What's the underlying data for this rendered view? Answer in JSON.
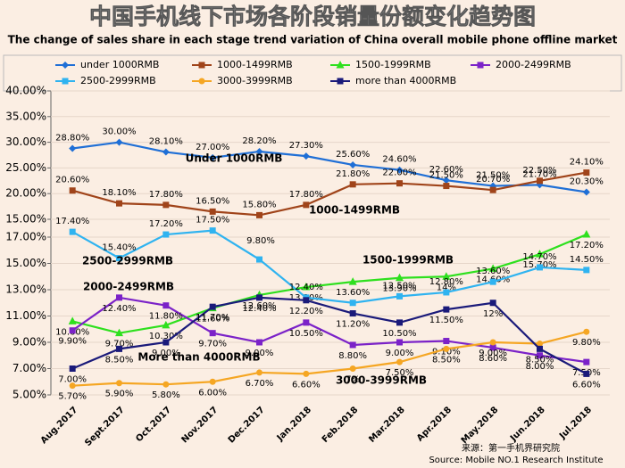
{
  "chart_data": {
    "type": "line",
    "title": "中国手机线下市场各阶段销量份额变化趋势图",
    "subtitle": "The change of sales share in each stage trend variation of China overall mobile phone offline market",
    "categories": [
      "Aug.2017",
      "Sept.2017",
      "Oct.2017",
      "Nov.2017",
      "Dec.2017",
      "Jan.2018",
      "Feb.2018",
      "Mar.2018",
      "Apr.2018",
      "May.2018",
      "Jun.2018",
      "Jul.2018"
    ],
    "ylim": [
      5,
      17
    ],
    "yticks": [
      {
        "value": 5,
        "label": "5.00%"
      },
      {
        "value": 7,
        "label": "7.00%"
      },
      {
        "value": 9,
        "label": "9.00%"
      },
      {
        "value": 11,
        "label": "11.00%"
      },
      {
        "value": 13,
        "label": "13.00%"
      },
      {
        "value": 15,
        "label": "15.00%"
      },
      {
        "value": 17,
        "label": "17.00%"
      }
    ],
    "y2lim": [
      15,
      40
    ],
    "y2ticks": [
      {
        "value": 15,
        "label": "15.00%"
      },
      {
        "value": 20,
        "label": "20.00%"
      },
      {
        "value": 25,
        "label": "25.00%"
      },
      {
        "value": 30,
        "label": "30.00%"
      },
      {
        "value": 35,
        "label": "35.00%"
      },
      {
        "value": 40,
        "label": "40.00%"
      }
    ],
    "grid": true,
    "series": [
      {
        "name": "under 1000RMB",
        "color": "#1f6fd6",
        "axis": "y2",
        "values": [
          28.8,
          30,
          28.1,
          27,
          28.2,
          27.3,
          25.6,
          24.6,
          22.6,
          21.5,
          21.7,
          20.3
        ],
        "value_labels": [
          "28.80%",
          "30.00%",
          "28.10%",
          "27.00%",
          "28.20%",
          "27.30%",
          "25.60%",
          "24.60%",
          "22.60%",
          "21.50%",
          "21.70%",
          "20.30%"
        ]
      },
      {
        "name": "1000-1499RMB",
        "color": "#a0441a",
        "axis": "y2",
        "values": [
          20.6,
          18.1,
          17.8,
          16.5,
          15.8,
          17.8,
          21.8,
          22,
          21.5,
          20.7,
          22.5,
          24.1
        ],
        "value_labels": [
          "20.60%",
          "18.10%",
          "17.80%",
          "16.50%",
          "15.80%",
          "17.80%",
          "21.80%",
          "22.00%",
          "21.50%",
          "20.70%",
          "22.50%",
          "24.10%"
        ]
      },
      {
        "name": "1500-1999RMB",
        "color": "#2ee01e",
        "values": [
          10.6,
          9.7,
          10.3,
          11.6,
          12.6,
          13.2,
          13.6,
          13.9,
          14,
          14.6,
          15.7,
          17.2
        ],
        "value_labels": [
          "10.60%",
          "9.70%",
          "10.30%",
          "11.60%",
          "12.60%",
          "13.20%",
          "13.60%",
          "13.90%",
          "14%",
          "14.60%",
          "15.70%",
          "17.20%"
        ]
      },
      {
        "name": "2000-2499RMB",
        "color": "#7b22c8",
        "values": [
          9.9,
          12.4,
          11.8,
          9.7,
          9,
          10.5,
          8.8,
          9,
          9.1,
          8.6,
          8,
          7.5
        ],
        "value_labels": [
          "9.90%",
          "12.40%",
          "11.80%",
          "9.70%",
          "9.00%",
          "10.50%",
          "8.80%",
          "9.00%",
          "9.10%",
          "8.60%",
          "8.00%",
          "7.50%"
        ]
      },
      {
        "name": "2500-2999RMB",
        "color": "#2fb3f0",
        "values": [
          17.4,
          15.4,
          17.2,
          17.5,
          15.3,
          12.4,
          12,
          12.5,
          12.8,
          13.6,
          14.7,
          14.5
        ],
        "value_labels": [
          "17.40%",
          "15.40%",
          "17.20%",
          "17.50%",
          null,
          "12.40%",
          null,
          "12.50%",
          "12.80%",
          "13.60%",
          "14.70%",
          "14.50%"
        ]
      },
      {
        "name": "3000-3999RMB",
        "color": "#f5a623",
        "values": [
          5.7,
          5.9,
          5.8,
          6,
          6.7,
          6.6,
          7,
          7.5,
          8.5,
          9,
          8.9,
          9.8
        ],
        "value_labels": [
          "5.70%",
          "5.90%",
          "5.80%",
          "6.00%",
          "6.70%",
          "6.60%",
          "7%",
          "7.50%",
          "8.50%",
          "9.00%",
          null,
          "9.80%"
        ]
      },
      {
        "name": "more than 4000RMB",
        "color": "#1a1a7a",
        "values": [
          7,
          8.5,
          9,
          11.7,
          12.4,
          12.2,
          11.2,
          10.5,
          11.5,
          12,
          8.5,
          6.6
        ],
        "value_labels": [
          "7.00%",
          "8.50%",
          "9.00%",
          "11.70%",
          "12.40%",
          "12.20%",
          "11.20%",
          "10.50%",
          "11.50%",
          "12%",
          "8.50%",
          "6.60%"
        ]
      }
    ],
    "annotations": [
      "Under 1000RMB",
      "1000-1499RMB",
      "2500-2999RMB",
      "1500-1999RMB",
      "2000-2499RMB",
      "More than 4000RMB",
      "3000-3999RMB",
      "9.80%"
    ],
    "source": [
      "来源：第一手机界研究院",
      "Source: Mobile NO.1 Research Institute"
    ]
  }
}
